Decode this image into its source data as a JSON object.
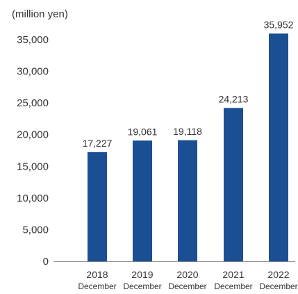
{
  "chart_data": {
    "type": "bar",
    "unit_label": "(million yen)",
    "categories": [
      {
        "year": "2018",
        "month": "December"
      },
      {
        "year": "2019",
        "month": "December"
      },
      {
        "year": "2020",
        "month": "December"
      },
      {
        "year": "2021",
        "month": "December"
      },
      {
        "year": "2022",
        "month": "December"
      }
    ],
    "values": [
      17227,
      19061,
      19118,
      24213,
      35952
    ],
    "value_labels": [
      "17,227",
      "19,061",
      "19,118",
      "24,213",
      "35,952"
    ],
    "ylim": [
      0,
      35000
    ],
    "yticks": [
      0,
      5000,
      10000,
      15000,
      20000,
      25000,
      30000,
      35000
    ],
    "ytick_labels": [
      "0",
      "5,000",
      "10,000",
      "15,000",
      "20,000",
      "25,000",
      "30,000",
      "35,000"
    ],
    "grid": false,
    "legend": "none",
    "bar_color": "#1b4f93",
    "axis_color": "#888888"
  }
}
